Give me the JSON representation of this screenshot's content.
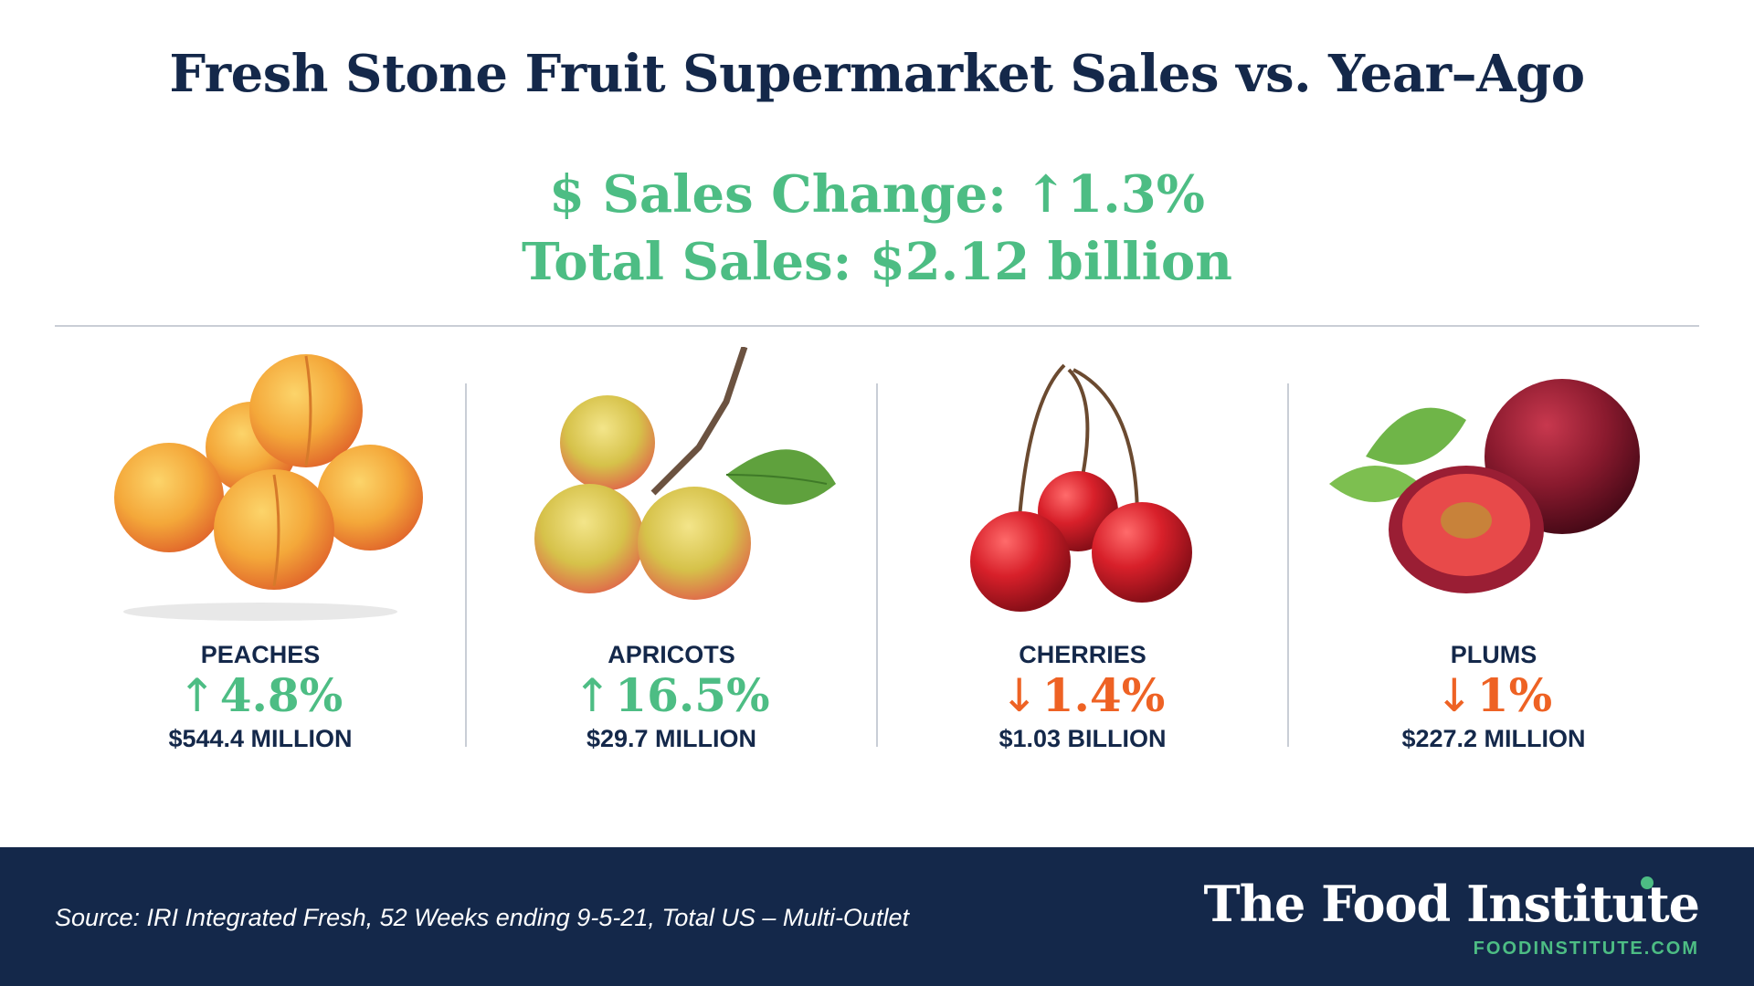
{
  "title": "Fresh Stone Fruit Supermarket Sales vs. Year–Ago",
  "summary": {
    "sales_change": "$ Sales Change: ↑1.3%",
    "total_sales": "Total Sales: $2.12 billion"
  },
  "colors": {
    "navy": "#14284a",
    "up": "#4dbd84",
    "down": "#ee6224"
  },
  "fruits": [
    {
      "name": "PEACHES",
      "arrow": "↑",
      "change": "4.8%",
      "direction": "up",
      "amount": "$544.4 MILLION",
      "image": "peaches-image"
    },
    {
      "name": "APRICOTS",
      "arrow": "↑",
      "change": "16.5%",
      "direction": "up",
      "amount": "$29.7 MILLION",
      "image": "apricots-image"
    },
    {
      "name": "CHERRIES",
      "arrow": "↓",
      "change": "1.4%",
      "direction": "down",
      "amount": "$1.03 BILLION",
      "image": "cherries-image"
    },
    {
      "name": "PLUMS",
      "arrow": "↓",
      "change": "1%",
      "direction": "down",
      "amount": "$227.2 MILLION",
      "image": "plums-image"
    }
  ],
  "footer": {
    "source": "Source: IRI Integrated Fresh, 52 Weeks ending 9-5-21, Total US – Multi-Outlet",
    "brand": "The Food Institute",
    "url": "FOODINSTITUTE.COM"
  }
}
